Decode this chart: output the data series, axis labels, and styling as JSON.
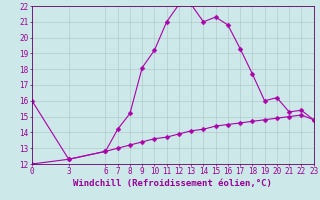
{
  "xlabel": "Windchill (Refroidissement éolien,°C)",
  "bg_color": "#cce8e8",
  "grid_color": "#aabfbf",
  "line_color": "#aa00aa",
  "line1_x": [
    0,
    3,
    6,
    7,
    8,
    9,
    10,
    11,
    12,
    13,
    14,
    15,
    16,
    17,
    18,
    19,
    20,
    21,
    22,
    23
  ],
  "line1_y": [
    16.0,
    12.3,
    12.8,
    14.2,
    15.2,
    18.1,
    19.2,
    21.0,
    22.1,
    22.1,
    21.0,
    21.3,
    20.8,
    19.3,
    17.7,
    16.0,
    16.2,
    15.3,
    15.4,
    14.8
  ],
  "line2_x": [
    0,
    3,
    6,
    7,
    8,
    9,
    10,
    11,
    12,
    13,
    14,
    15,
    16,
    17,
    18,
    19,
    20,
    21,
    22,
    23
  ],
  "line2_y": [
    12.0,
    12.3,
    12.8,
    13.0,
    13.2,
    13.4,
    13.6,
    13.7,
    13.9,
    14.1,
    14.2,
    14.4,
    14.5,
    14.6,
    14.7,
    14.8,
    14.9,
    15.0,
    15.1,
    14.8
  ],
  "xlim": [
    0,
    23
  ],
  "ylim": [
    12,
    22
  ],
  "xticks": [
    0,
    3,
    6,
    7,
    8,
    9,
    10,
    11,
    12,
    13,
    14,
    15,
    16,
    17,
    18,
    19,
    20,
    21,
    22,
    23
  ],
  "yticks": [
    12,
    13,
    14,
    15,
    16,
    17,
    18,
    19,
    20,
    21,
    22
  ],
  "tick_color": "#990099",
  "axis_color": "#660066",
  "tick_fontsize": 5.5,
  "xlabel_fontsize": 6.5,
  "marker": "D",
  "markersize": 2.5,
  "linewidth": 0.8
}
